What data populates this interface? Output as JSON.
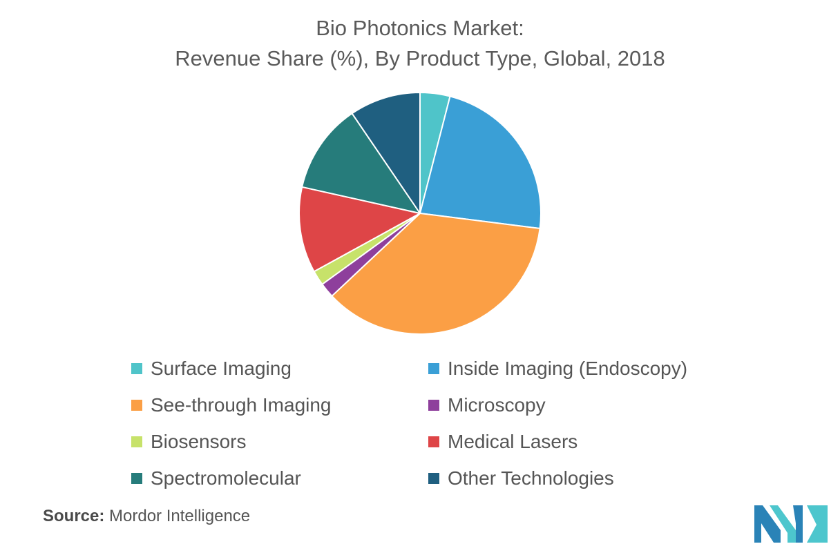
{
  "chart_data": {
    "type": "pie",
    "title_line_1": "Bio Photonics Market:",
    "title_line_2": "Revenue Share (%), By Product Type, Global, 2018",
    "legend_position": "bottom",
    "slices": [
      {
        "label": "Surface Imaging",
        "value": 4,
        "color": "#4fc4c9"
      },
      {
        "label": "Inside Imaging (Endoscopy)",
        "value": 23,
        "color": "#3a9fd6"
      },
      {
        "label": "See-through Imaging",
        "value": 36,
        "color": "#fb9f45"
      },
      {
        "label": "Microscopy",
        "value": 2,
        "color": "#8e3f9c"
      },
      {
        "label": "Biosensors",
        "value": 2,
        "color": "#c7e26a"
      },
      {
        "label": "Medical Lasers",
        "value": 11.5,
        "color": "#de4547"
      },
      {
        "label": "Spectromolecular",
        "value": 12,
        "color": "#267c7b"
      },
      {
        "label": "Other Technologies",
        "value": 9.5,
        "color": "#1f5f80"
      }
    ]
  },
  "source": {
    "label": "Source:",
    "text": "Mordor Intelligence"
  },
  "logo": {
    "colors": [
      "#2a83b7",
      "#4dc6cd"
    ]
  }
}
